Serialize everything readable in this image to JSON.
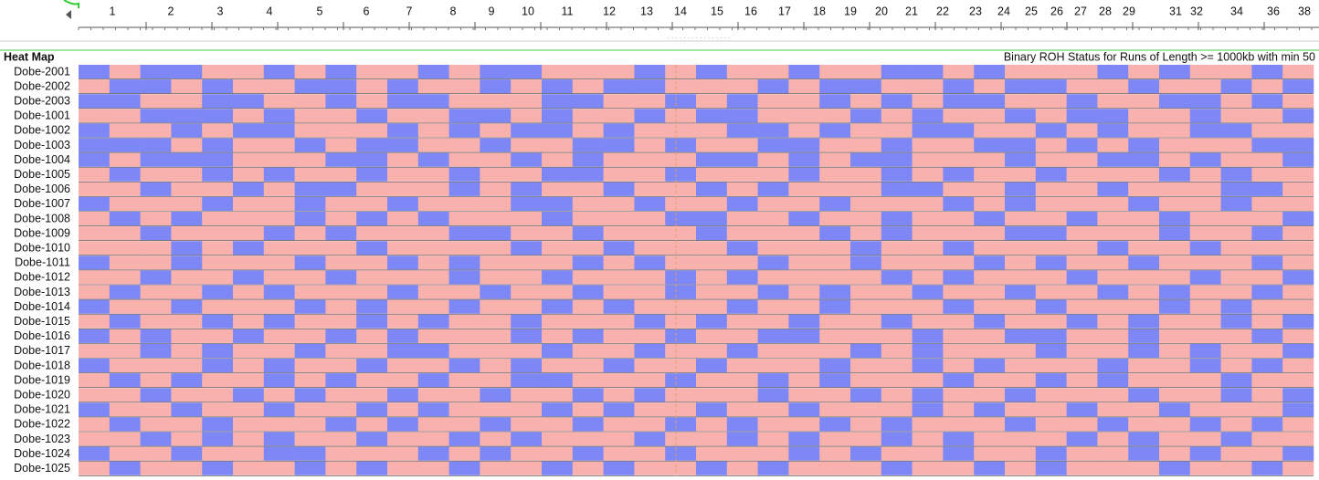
{
  "ruler": {
    "labels": [
      "1",
      "2",
      "3",
      "4",
      "5",
      "6",
      "7",
      "8",
      "9",
      "10",
      "11",
      "12",
      "13",
      "14",
      "15",
      "16",
      "17",
      "18",
      "19",
      "20",
      "21",
      "22",
      "23",
      "24",
      "25",
      "26",
      "27",
      "28",
      "29",
      "31",
      "32",
      "34",
      "36",
      "38"
    ]
  },
  "heatmap": {
    "label": "Heat Map",
    "title": "Binary ROH Status for Runs of Length >= 1000kb with min 50",
    "colors": {
      "0": "#f9b1ae",
      "1": "#7d88f6"
    },
    "rows": [
      {
        "name": "Dobe-2001",
        "values": [
          1,
          0,
          1,
          1,
          0,
          0,
          1,
          0,
          1,
          0,
          0,
          1,
          0,
          1,
          1,
          0,
          0,
          0,
          1,
          0,
          1,
          0,
          0,
          1,
          0,
          0,
          1,
          1,
          0,
          1,
          0,
          0,
          0,
          1,
          0,
          1,
          0,
          0,
          1,
          0
        ]
      },
      {
        "name": "Dobe-2002",
        "values": [
          0,
          1,
          1,
          0,
          1,
          0,
          0,
          1,
          1,
          0,
          1,
          0,
          0,
          1,
          0,
          1,
          0,
          1,
          1,
          0,
          0,
          0,
          1,
          0,
          1,
          1,
          0,
          0,
          1,
          0,
          1,
          1,
          0,
          0,
          1,
          0,
          0,
          1,
          0,
          1
        ]
      },
      {
        "name": "Dobe-2003",
        "values": [
          1,
          1,
          0,
          0,
          1,
          1,
          0,
          0,
          1,
          0,
          1,
          1,
          0,
          0,
          0,
          1,
          1,
          0,
          0,
          1,
          0,
          1,
          0,
          0,
          1,
          0,
          1,
          0,
          1,
          1,
          0,
          0,
          1,
          0,
          0,
          1,
          1,
          0,
          1,
          0
        ]
      },
      {
        "name": "Dobe-1001",
        "values": [
          0,
          0,
          1,
          1,
          1,
          0,
          1,
          0,
          0,
          1,
          0,
          0,
          1,
          1,
          0,
          1,
          0,
          0,
          1,
          0,
          1,
          1,
          0,
          0,
          0,
          1,
          0,
          1,
          0,
          0,
          1,
          0,
          1,
          1,
          0,
          0,
          1,
          0,
          0,
          1
        ]
      },
      {
        "name": "Dobe-1002",
        "values": [
          1,
          0,
          0,
          1,
          0,
          1,
          1,
          0,
          0,
          0,
          1,
          0,
          1,
          0,
          1,
          1,
          0,
          1,
          0,
          0,
          0,
          1,
          1,
          0,
          1,
          0,
          0,
          1,
          1,
          0,
          0,
          1,
          0,
          1,
          0,
          0,
          1,
          1,
          0,
          0
        ]
      },
      {
        "name": "Dobe-1003",
        "values": [
          1,
          1,
          1,
          0,
          1,
          0,
          0,
          1,
          0,
          1,
          1,
          0,
          0,
          1,
          0,
          0,
          1,
          1,
          0,
          1,
          0,
          0,
          1,
          1,
          0,
          0,
          1,
          0,
          0,
          1,
          1,
          0,
          1,
          0,
          1,
          0,
          0,
          0,
          1,
          1
        ]
      },
      {
        "name": "Dobe-1004",
        "values": [
          1,
          0,
          1,
          1,
          1,
          0,
          0,
          0,
          1,
          1,
          0,
          1,
          0,
          0,
          1,
          0,
          1,
          0,
          0,
          0,
          1,
          1,
          0,
          1,
          0,
          1,
          1,
          0,
          0,
          0,
          1,
          0,
          0,
          1,
          1,
          0,
          1,
          0,
          0,
          1
        ]
      },
      {
        "name": "Dobe-1005",
        "values": [
          0,
          1,
          0,
          0,
          1,
          0,
          1,
          0,
          0,
          1,
          0,
          0,
          1,
          0,
          0,
          1,
          1,
          0,
          0,
          1,
          0,
          0,
          0,
          1,
          0,
          0,
          1,
          0,
          1,
          0,
          0,
          1,
          0,
          0,
          0,
          1,
          0,
          1,
          0,
          0
        ]
      },
      {
        "name": "Dobe-1006",
        "values": [
          0,
          0,
          1,
          0,
          0,
          1,
          0,
          1,
          1,
          0,
          0,
          0,
          1,
          0,
          1,
          0,
          0,
          1,
          0,
          0,
          1,
          0,
          1,
          0,
          0,
          0,
          1,
          1,
          0,
          0,
          1,
          0,
          0,
          1,
          0,
          0,
          0,
          1,
          1,
          0
        ]
      },
      {
        "name": "Dobe-1007",
        "values": [
          1,
          0,
          0,
          0,
          1,
          0,
          0,
          1,
          0,
          0,
          1,
          0,
          0,
          0,
          1,
          1,
          0,
          0,
          1,
          0,
          0,
          1,
          0,
          0,
          1,
          0,
          0,
          0,
          1,
          0,
          1,
          0,
          0,
          0,
          1,
          0,
          0,
          1,
          0,
          0
        ]
      },
      {
        "name": "Dobe-1008",
        "values": [
          0,
          1,
          0,
          1,
          0,
          0,
          0,
          1,
          0,
          1,
          0,
          1,
          0,
          0,
          0,
          1,
          0,
          0,
          0,
          1,
          1,
          0,
          0,
          1,
          0,
          0,
          1,
          0,
          0,
          1,
          0,
          0,
          1,
          0,
          0,
          1,
          0,
          0,
          0,
          1
        ]
      },
      {
        "name": "Dobe-1009",
        "values": [
          0,
          0,
          1,
          0,
          0,
          0,
          1,
          0,
          1,
          0,
          0,
          0,
          1,
          1,
          0,
          0,
          1,
          0,
          0,
          0,
          1,
          0,
          0,
          0,
          1,
          0,
          1,
          0,
          0,
          0,
          1,
          1,
          0,
          0,
          0,
          1,
          0,
          0,
          1,
          0
        ]
      },
      {
        "name": "Dobe-1010",
        "values": [
          0,
          0,
          0,
          1,
          0,
          1,
          0,
          0,
          0,
          1,
          0,
          0,
          0,
          0,
          1,
          0,
          0,
          1,
          0,
          0,
          0,
          1,
          0,
          0,
          0,
          1,
          0,
          0,
          1,
          0,
          0,
          0,
          0,
          1,
          0,
          0,
          1,
          0,
          0,
          0
        ]
      },
      {
        "name": "Dobe-1011",
        "values": [
          1,
          0,
          0,
          1,
          0,
          0,
          0,
          1,
          0,
          0,
          1,
          0,
          1,
          0,
          0,
          0,
          1,
          0,
          1,
          0,
          0,
          0,
          1,
          0,
          0,
          1,
          0,
          0,
          0,
          1,
          0,
          1,
          0,
          0,
          1,
          0,
          0,
          0,
          1,
          0
        ]
      },
      {
        "name": "Dobe-1012",
        "values": [
          0,
          0,
          1,
          0,
          0,
          1,
          0,
          0,
          1,
          0,
          0,
          0,
          1,
          0,
          0,
          1,
          0,
          0,
          0,
          1,
          0,
          1,
          0,
          0,
          0,
          0,
          1,
          0,
          1,
          0,
          0,
          0,
          1,
          0,
          0,
          0,
          1,
          0,
          0,
          1
        ]
      },
      {
        "name": "Dobe-1013",
        "values": [
          0,
          1,
          0,
          0,
          1,
          0,
          1,
          0,
          0,
          0,
          1,
          0,
          0,
          1,
          0,
          0,
          1,
          0,
          0,
          1,
          0,
          0,
          1,
          0,
          1,
          0,
          0,
          1,
          0,
          0,
          1,
          0,
          0,
          1,
          0,
          1,
          0,
          0,
          1,
          0
        ]
      },
      {
        "name": "Dobe-1014",
        "values": [
          1,
          0,
          0,
          1,
          0,
          0,
          0,
          1,
          0,
          1,
          0,
          0,
          1,
          0,
          0,
          1,
          0,
          1,
          0,
          0,
          0,
          1,
          0,
          0,
          1,
          0,
          0,
          0,
          1,
          0,
          0,
          1,
          0,
          0,
          0,
          1,
          0,
          1,
          0,
          0
        ]
      },
      {
        "name": "Dobe-1015",
        "values": [
          0,
          1,
          0,
          0,
          1,
          0,
          1,
          0,
          0,
          1,
          0,
          1,
          0,
          0,
          1,
          0,
          0,
          0,
          1,
          0,
          1,
          0,
          0,
          1,
          0,
          0,
          1,
          0,
          0,
          1,
          0,
          0,
          1,
          0,
          1,
          0,
          0,
          1,
          0,
          1
        ]
      },
      {
        "name": "Dobe-1016",
        "values": [
          1,
          0,
          1,
          0,
          0,
          1,
          0,
          0,
          1,
          0,
          1,
          0,
          0,
          0,
          1,
          0,
          1,
          0,
          0,
          1,
          0,
          0,
          1,
          1,
          0,
          0,
          0,
          1,
          0,
          0,
          1,
          1,
          0,
          0,
          1,
          0,
          0,
          0,
          1,
          0
        ]
      },
      {
        "name": "Dobe-1017",
        "values": [
          0,
          0,
          1,
          0,
          1,
          0,
          0,
          1,
          0,
          0,
          1,
          1,
          0,
          0,
          0,
          1,
          0,
          0,
          1,
          0,
          0,
          1,
          0,
          0,
          0,
          1,
          0,
          1,
          0,
          0,
          0,
          1,
          0,
          0,
          1,
          0,
          1,
          0,
          0,
          1
        ]
      },
      {
        "name": "Dobe-1018",
        "values": [
          1,
          0,
          0,
          0,
          1,
          0,
          1,
          0,
          0,
          1,
          0,
          0,
          1,
          0,
          1,
          0,
          0,
          1,
          0,
          0,
          1,
          0,
          0,
          0,
          1,
          0,
          0,
          1,
          0,
          1,
          0,
          0,
          0,
          1,
          0,
          0,
          1,
          0,
          1,
          0
        ]
      },
      {
        "name": "Dobe-1019",
        "values": [
          0,
          1,
          0,
          1,
          0,
          0,
          1,
          0,
          1,
          0,
          0,
          1,
          0,
          0,
          1,
          1,
          0,
          0,
          0,
          1,
          0,
          0,
          1,
          0,
          1,
          0,
          0,
          0,
          1,
          0,
          0,
          1,
          0,
          1,
          0,
          0,
          0,
          1,
          0,
          0
        ]
      },
      {
        "name": "Dobe-1020",
        "values": [
          0,
          0,
          1,
          0,
          0,
          1,
          0,
          1,
          0,
          0,
          1,
          0,
          0,
          1,
          0,
          0,
          1,
          0,
          1,
          0,
          0,
          0,
          1,
          0,
          0,
          1,
          0,
          1,
          0,
          0,
          1,
          0,
          0,
          0,
          1,
          0,
          0,
          1,
          0,
          1
        ]
      },
      {
        "name": "Dobe-1021",
        "values": [
          1,
          0,
          0,
          1,
          0,
          0,
          1,
          0,
          0,
          1,
          0,
          1,
          0,
          0,
          0,
          1,
          0,
          1,
          0,
          0,
          1,
          0,
          0,
          1,
          0,
          0,
          0,
          1,
          0,
          1,
          0,
          0,
          1,
          0,
          0,
          1,
          0,
          0,
          0,
          1
        ]
      },
      {
        "name": "Dobe-1022",
        "values": [
          0,
          1,
          0,
          0,
          1,
          0,
          0,
          0,
          1,
          0,
          1,
          0,
          0,
          1,
          0,
          0,
          1,
          0,
          0,
          1,
          0,
          1,
          0,
          0,
          1,
          0,
          1,
          0,
          0,
          0,
          1,
          0,
          0,
          1,
          0,
          0,
          1,
          0,
          1,
          0
        ]
      },
      {
        "name": "Dobe-1023",
        "values": [
          0,
          0,
          1,
          0,
          1,
          0,
          1,
          0,
          0,
          1,
          0,
          0,
          1,
          0,
          1,
          0,
          0,
          0,
          1,
          0,
          0,
          1,
          0,
          1,
          0,
          0,
          1,
          0,
          1,
          0,
          0,
          0,
          1,
          0,
          1,
          0,
          0,
          1,
          0,
          0
        ]
      },
      {
        "name": "Dobe-1024",
        "values": [
          1,
          0,
          0,
          1,
          0,
          0,
          1,
          1,
          0,
          0,
          0,
          1,
          0,
          1,
          0,
          0,
          1,
          0,
          0,
          1,
          0,
          0,
          0,
          1,
          0,
          1,
          0,
          0,
          1,
          0,
          0,
          1,
          0,
          0,
          1,
          0,
          1,
          0,
          0,
          1
        ]
      },
      {
        "name": "Dobe-1025",
        "values": [
          0,
          1,
          0,
          0,
          1,
          0,
          0,
          1,
          0,
          1,
          0,
          0,
          1,
          0,
          0,
          1,
          0,
          1,
          0,
          0,
          1,
          0,
          1,
          0,
          0,
          0,
          1,
          0,
          0,
          1,
          0,
          1,
          0,
          0,
          0,
          1,
          0,
          0,
          1,
          0
        ]
      }
    ]
  }
}
